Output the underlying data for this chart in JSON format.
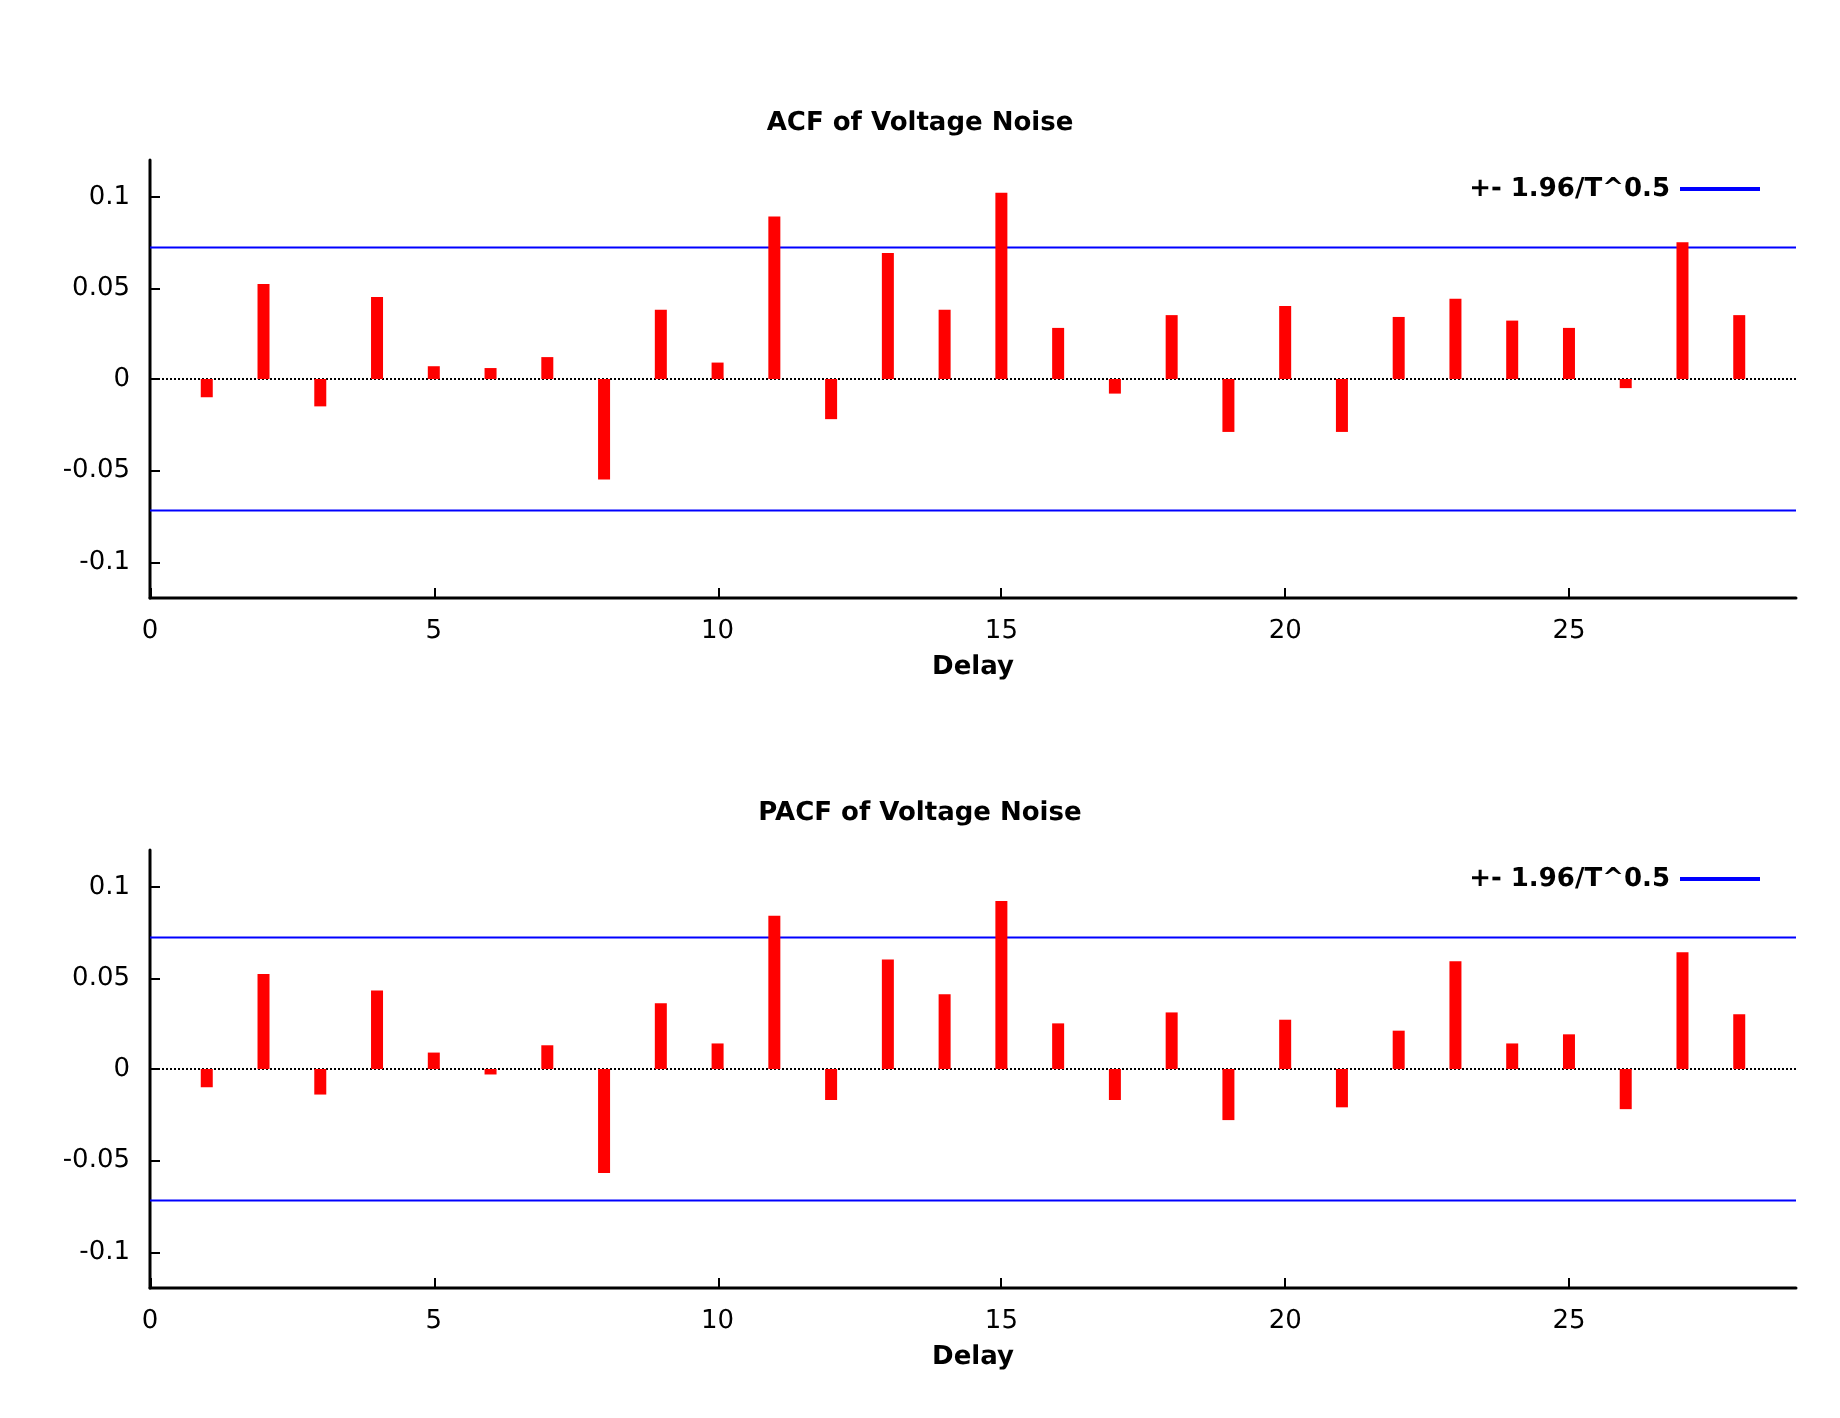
{
  "chart_data": [
    {
      "type": "bar",
      "title": "ACF of Voltage Noise",
      "xlabel": "Delay",
      "x": [
        1,
        2,
        3,
        4,
        5,
        6,
        7,
        8,
        9,
        10,
        11,
        12,
        13,
        14,
        15,
        16,
        17,
        18,
        19,
        20,
        21,
        22,
        23,
        24,
        25,
        26,
        27,
        28
      ],
      "series": [
        {
          "color": "#ff0000",
          "values": [
            -0.01,
            0.052,
            -0.015,
            0.045,
            0.007,
            0.006,
            0.012,
            -0.055,
            0.038,
            0.009,
            0.089,
            -0.022,
            0.069,
            0.038,
            0.102,
            0.028,
            -0.008,
            0.035,
            -0.029,
            0.04,
            -0.029,
            0.034,
            0.044,
            0.032,
            0.028,
            -0.005,
            0.075,
            0.035
          ]
        }
      ],
      "xlim": [
        0,
        29
      ],
      "xticks": [
        0,
        5,
        10,
        15,
        20,
        25
      ],
      "ylim": [
        -0.12,
        0.12
      ],
      "yticks": [
        -0.1,
        -0.05,
        0,
        0.05,
        0.1
      ],
      "ref_lines": [
        {
          "axis": "y",
          "value": 0.072,
          "label": "+- 1.96/T^0.5",
          "color": "#0000ff"
        },
        {
          "axis": "y",
          "value": -0.072,
          "color": "#0000ff"
        },
        {
          "axis": "y",
          "value": 0,
          "color": "#000000",
          "line_style": "dotted"
        }
      ],
      "legend": "top right",
      "grid": false
    },
    {
      "type": "bar",
      "title": "PACF of Voltage Noise",
      "xlabel": "Delay",
      "x": [
        1,
        2,
        3,
        4,
        5,
        6,
        7,
        8,
        9,
        10,
        11,
        12,
        13,
        14,
        15,
        16,
        17,
        18,
        19,
        20,
        21,
        22,
        23,
        24,
        25,
        26,
        27,
        28
      ],
      "series": [
        {
          "color": "#ff0000",
          "values": [
            -0.01,
            0.052,
            -0.014,
            0.043,
            0.009,
            -0.003,
            0.013,
            -0.057,
            0.036,
            0.014,
            0.084,
            -0.017,
            0.06,
            0.041,
            0.092,
            0.025,
            -0.017,
            0.031,
            -0.028,
            0.027,
            -0.021,
            0.021,
            0.059,
            0.014,
            0.019,
            -0.022,
            0.064,
            0.03
          ]
        }
      ],
      "xlim": [
        0,
        29
      ],
      "xticks": [
        0,
        5,
        10,
        15,
        20,
        25
      ],
      "ylim": [
        -0.12,
        0.12
      ],
      "yticks": [
        -0.1,
        -0.05,
        0,
        0.05,
        0.1
      ],
      "ref_lines": [
        {
          "axis": "y",
          "value": 0.072,
          "label": "+- 1.96/T^0.5",
          "color": "#0000ff"
        },
        {
          "axis": "y",
          "value": -0.072,
          "color": "#0000ff"
        },
        {
          "axis": "y",
          "value": 0,
          "color": "#000000",
          "line_style": "dotted"
        }
      ],
      "legend": "top right",
      "grid": false
    }
  ]
}
